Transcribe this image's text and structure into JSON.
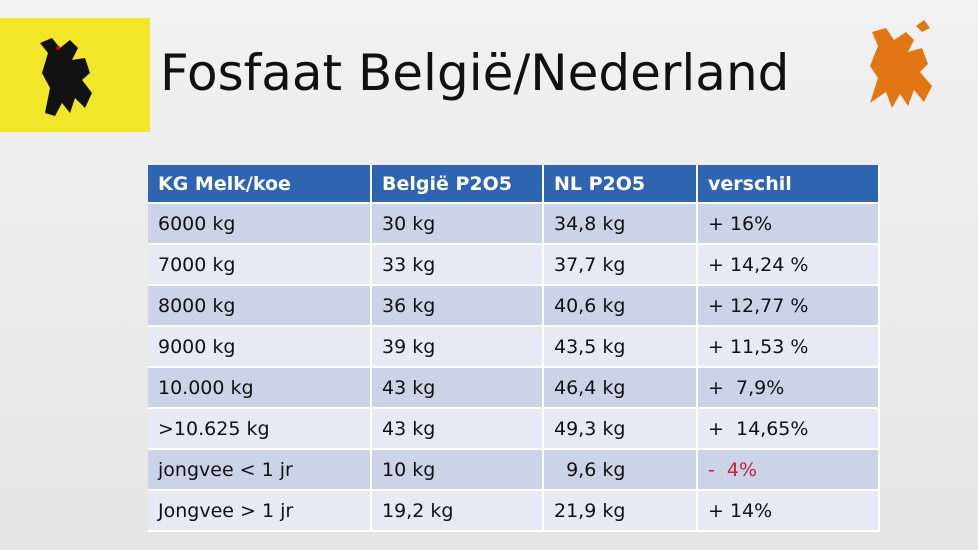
{
  "header": {
    "title": "Fosfaat België/Nederland"
  },
  "table": {
    "columns": [
      "KG Melk/koe",
      "België P2O5",
      "NL P2O5",
      "verschil"
    ],
    "rows": [
      [
        "6000 kg",
        "30 kg",
        "34,8 kg",
        "+ 16%"
      ],
      [
        "7000 kg",
        "33 kg",
        "37,7 kg",
        "+ 14,24 %"
      ],
      [
        "8000 kg",
        "36 kg",
        "40,6 kg",
        "+ 12,77 %"
      ],
      [
        "9000 kg",
        "39 kg",
        "43,5 kg",
        "+ 11,53 %"
      ],
      [
        "10.000 kg",
        "43 kg",
        "46,4 kg",
        "+  7,9%"
      ],
      [
        ">10.625 kg",
        "43 kg",
        "49,3 kg",
        "+  14,65%"
      ],
      [
        "jongvee < 1 jr",
        "10 kg",
        "  9,6 kg",
        "-  4%"
      ],
      [
        "Jongvee > 1 jr",
        "19,2 kg",
        "21,9 kg",
        "+ 14%"
      ]
    ]
  }
}
